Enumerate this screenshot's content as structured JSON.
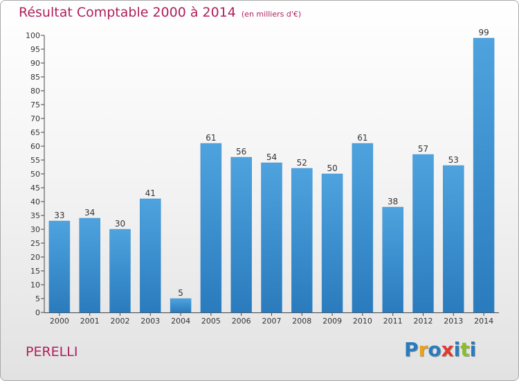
{
  "chart_data": {
    "type": "bar",
    "title": "Résultat Comptable 2000 à 2014",
    "unit_label": "(en milliers d'€)",
    "categories": [
      "2000",
      "2001",
      "2002",
      "2003",
      "2004",
      "2005",
      "2006",
      "2007",
      "2008",
      "2009",
      "2010",
      "2011",
      "2012",
      "2013",
      "2014"
    ],
    "values": [
      33,
      34,
      30,
      41,
      5,
      61,
      56,
      54,
      52,
      50,
      61,
      38,
      57,
      53,
      99
    ],
    "ylim": [
      0,
      100
    ],
    "ytick_step": 5,
    "xlabel": "",
    "ylabel": "",
    "grid": false,
    "bar_color": "#4ea3de",
    "bar_color_dark": "#2a7bbd"
  },
  "commune": "PERELLI",
  "logo": {
    "letters": [
      "P",
      "r",
      "o",
      "x",
      "i",
      "t",
      "i"
    ],
    "colors": [
      "#2a7bbd",
      "#e8a21b",
      "#2a7bbd",
      "#e03a2f",
      "#2a7bbd",
      "#8bbd2b",
      "#2a7bbd"
    ]
  }
}
